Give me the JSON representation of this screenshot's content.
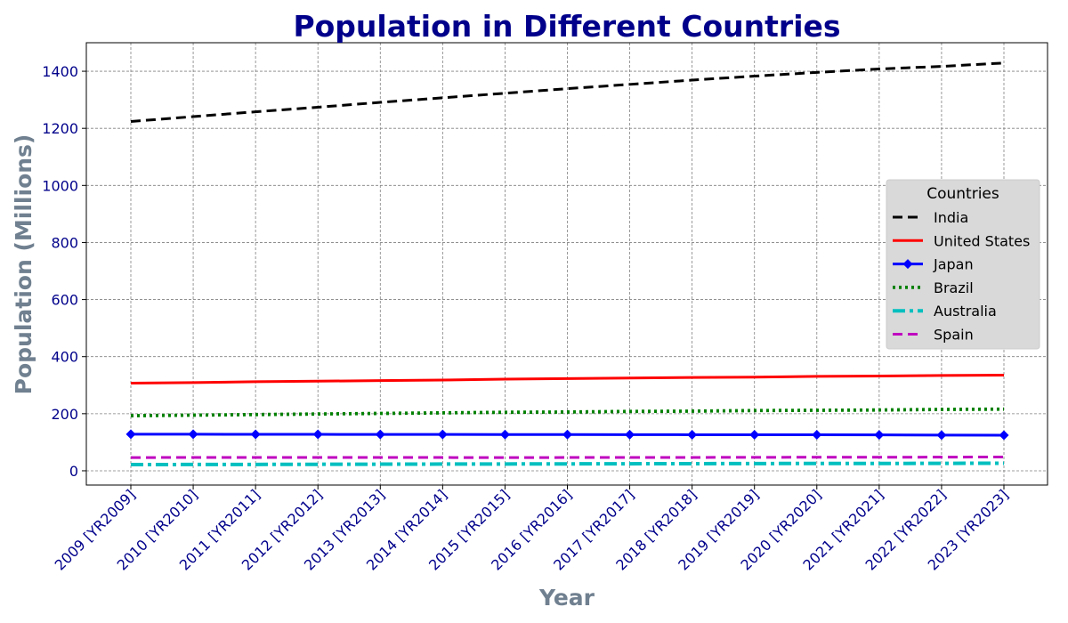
{
  "colors": {
    "title": "#00008b",
    "axis_label": "#708090",
    "tick_label": "#00008b",
    "grid": "#808080",
    "legend_bg": "#d9d9d9"
  },
  "chart_data": {
    "type": "line",
    "title": "Population in Different Countries",
    "xlabel": "Year",
    "ylabel": "Population (Millions)",
    "ylim": [
      -50,
      1500
    ],
    "yticks": [
      0,
      200,
      400,
      600,
      800,
      1000,
      1200,
      1400
    ],
    "grid": true,
    "legend": {
      "title": "Countries",
      "placement": "center-right"
    },
    "categories": [
      "2009 [YR2009]",
      "2010 [YR2010]",
      "2011 [YR2011]",
      "2012 [YR2012]",
      "2013 [YR2013]",
      "2014 [YR2014]",
      "2015 [YR2015]",
      "2016 [YR2016]",
      "2017 [YR2017]",
      "2018 [YR2018]",
      "2019 [YR2019]",
      "2020 [YR2020]",
      "2021 [YR2021]",
      "2022 [YR2022]",
      "2023 [YR2023]"
    ],
    "series": [
      {
        "name": "India",
        "color": "#000000",
        "dash": "dashed",
        "marker": "none",
        "values": [
          1224,
          1241,
          1258,
          1274,
          1291,
          1307,
          1323,
          1339,
          1354,
          1369,
          1383,
          1396,
          1408,
          1417,
          1429
        ]
      },
      {
        "name": "United States",
        "color": "#ff0000",
        "dash": "solid",
        "marker": "none",
        "values": [
          307,
          309,
          312,
          314,
          316,
          318,
          321,
          323,
          325,
          327,
          328,
          331,
          332,
          334,
          335
        ]
      },
      {
        "name": "Japan",
        "color": "#0000ff",
        "dash": "solid",
        "marker": "diamond",
        "values": [
          128.0,
          128.1,
          127.8,
          127.6,
          127.4,
          127.3,
          127.1,
          126.9,
          126.7,
          126.4,
          126.2,
          126.1,
          125.7,
          125.1,
          124.5
        ]
      },
      {
        "name": "Brazil",
        "color": "#008000",
        "dash": "dotted",
        "marker": "none",
        "values": [
          193,
          195,
          197,
          199,
          201,
          203,
          205,
          206,
          208,
          209,
          211,
          212,
          213,
          215,
          216
        ]
      },
      {
        "name": "Australia",
        "color": "#00bfbf",
        "dash": "dashdot",
        "marker": "none",
        "values": [
          21.7,
          22.0,
          22.3,
          22.7,
          23.1,
          23.5,
          23.8,
          24.2,
          24.6,
          24.9,
          25.3,
          25.7,
          25.7,
          26.0,
          26.6
        ]
      },
      {
        "name": "Spain",
        "color": "#bf00bf",
        "dash": "dashed",
        "marker": "none",
        "values": [
          46.4,
          46.6,
          46.7,
          46.8,
          46.6,
          46.5,
          46.4,
          46.5,
          46.6,
          46.8,
          47.1,
          47.4,
          47.4,
          47.8,
          48.3
        ]
      }
    ]
  }
}
